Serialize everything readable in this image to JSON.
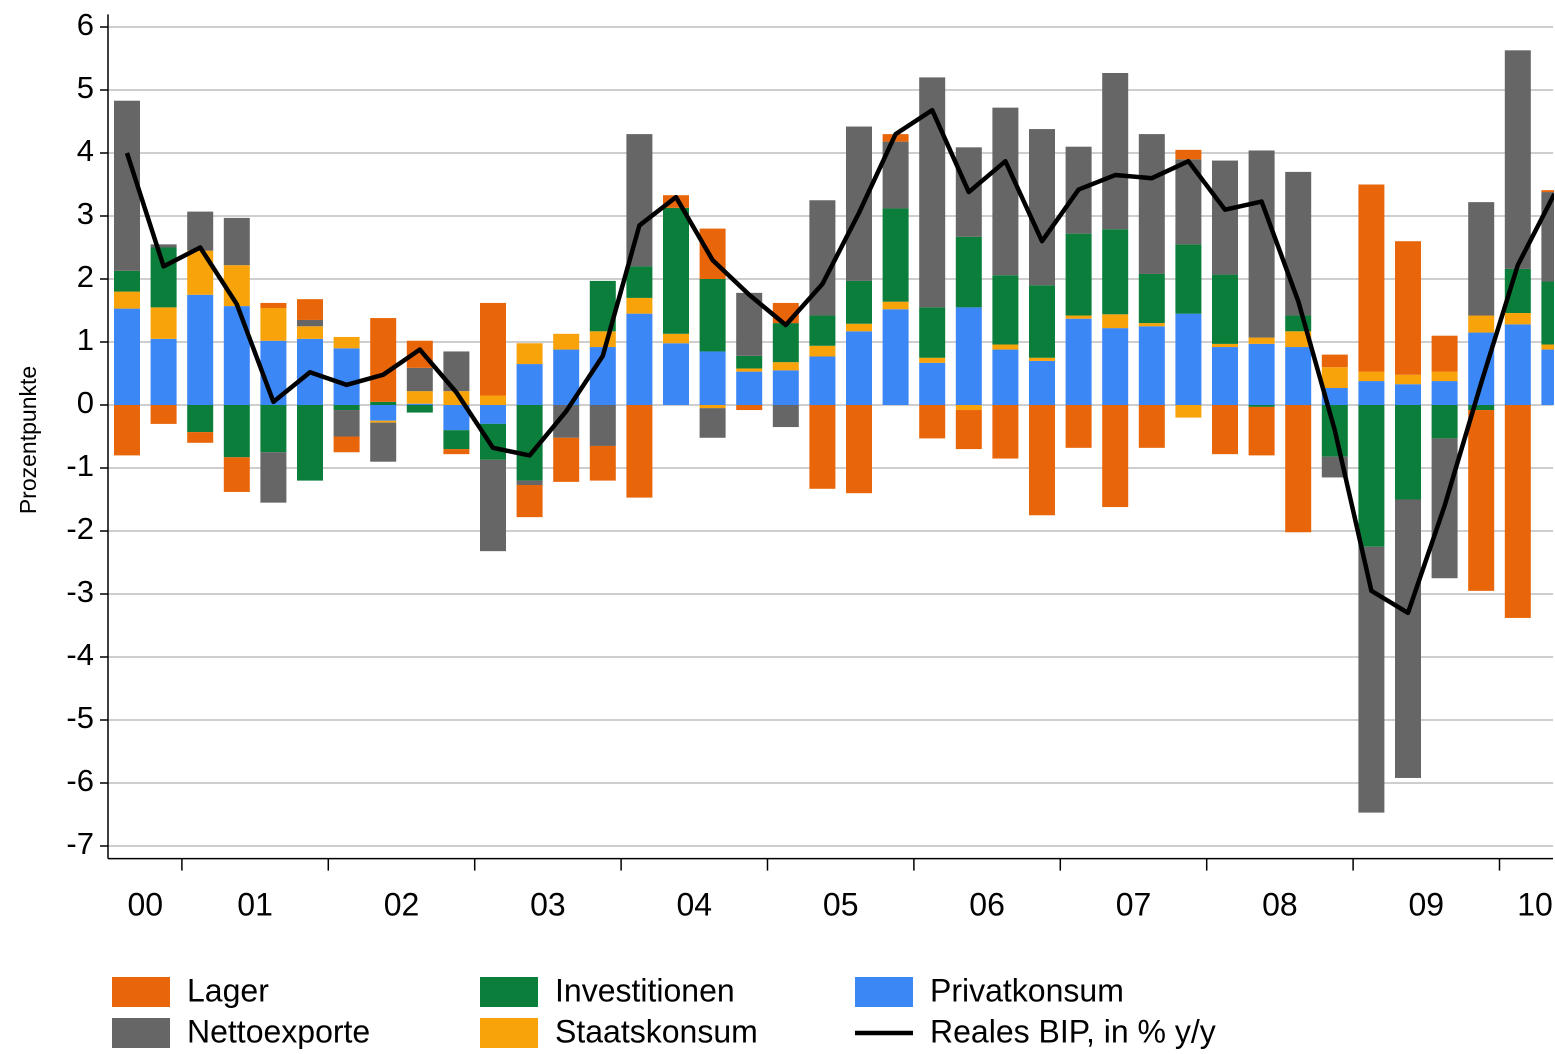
{
  "chart_data": {
    "type": "bar",
    "stacked": true,
    "y_label": "Prozentpunkte",
    "ylim": [
      -7.2,
      6.2
    ],
    "yticks": [
      -7,
      -6,
      -5,
      -4,
      -3,
      -2,
      -1,
      0,
      1,
      2,
      3,
      4,
      5,
      6
    ],
    "grid": true,
    "legend": "bottom",
    "categories": [
      "00",
      null,
      "01",
      null,
      null,
      null,
      "02",
      null,
      null,
      null,
      "03",
      null,
      null,
      null,
      "04",
      null,
      null,
      null,
      "05",
      null,
      null,
      null,
      "06",
      null,
      null,
      null,
      "07",
      null,
      null,
      null,
      "08",
      null,
      null,
      null,
      "09",
      null,
      null,
      null,
      "10",
      null
    ],
    "series": [
      {
        "name": "Lager",
        "color": "#e8650a",
        "values": [
          -0.8,
          -0.3,
          -0.17,
          -0.55,
          0.08,
          0.33,
          -0.25,
          1.33,
          0.43,
          -0.08,
          1.47,
          -0.51,
          -0.7,
          -0.55,
          -1.47,
          0.2,
          0.8,
          -0.08,
          0.32,
          -1.33,
          -1.4,
          0.12,
          -0.53,
          -0.62,
          -0.85,
          -1.75,
          -0.68,
          -1.62,
          -0.68,
          0.15,
          -0.78,
          -0.77,
          -2.02,
          0.2,
          2.97,
          2.12,
          0.57,
          -2.87,
          -3.38,
          0.03
        ]
      },
      {
        "name": "Nettoexporte",
        "color": "#666666",
        "values": [
          2.7,
          0.05,
          0.62,
          0.75,
          -0.8,
          0.1,
          -0.42,
          -0.62,
          0.37,
          0.63,
          -1.45,
          -0.07,
          -0.52,
          -0.65,
          2.1,
          0,
          -0.47,
          1.0,
          -0.35,
          1.83,
          2.45,
          1.06,
          3.65,
          1.42,
          2.66,
          2.48,
          1.38,
          2.48,
          2.22,
          1.35,
          1.81,
          2.97,
          2.28,
          -0.33,
          -4.22,
          -4.42,
          -2.22,
          1.8,
          3.47,
          1.42
        ]
      },
      {
        "name": "Investitionen",
        "color": "#0a7e3a",
        "values": [
          0.33,
          0.95,
          -0.43,
          -0.83,
          -0.75,
          -1.2,
          -0.08,
          0.05,
          -0.12,
          -0.3,
          -0.57,
          -1.2,
          0,
          0.8,
          0.5,
          2.0,
          1.15,
          0.2,
          0.62,
          0.48,
          0.68,
          1.48,
          0.8,
          1.12,
          1.1,
          1.15,
          1.3,
          1.35,
          0.78,
          1.1,
          1.1,
          -0.03,
          0.25,
          -0.82,
          -2.25,
          -1.5,
          -0.53,
          -0.08,
          0.7,
          1.0
        ]
      },
      {
        "name": "Staatskonsum",
        "color": "#f9a30b",
        "values": [
          0.27,
          0.5,
          0.7,
          0.65,
          0.52,
          0.2,
          0.18,
          -0.03,
          0.2,
          0.22,
          0.15,
          0.33,
          0.25,
          0.25,
          0.25,
          0.15,
          -0.05,
          0.05,
          0.13,
          0.17,
          0.12,
          0.12,
          0.08,
          -0.08,
          0.08,
          0.05,
          0.05,
          0.22,
          0.05,
          -0.2,
          0.05,
          0.1,
          0.25,
          0.33,
          0.15,
          0.15,
          0.15,
          0.27,
          0.18,
          0.08
        ]
      },
      {
        "name": "Privatkonsum",
        "color": "#3b87f5",
        "values": [
          1.53,
          1.05,
          1.75,
          1.57,
          1.02,
          1.05,
          0.9,
          -0.25,
          0.02,
          -0.4,
          -0.3,
          0.65,
          0.88,
          0.92,
          1.45,
          0.98,
          0.85,
          0.53,
          0.55,
          0.77,
          1.17,
          1.52,
          0.67,
          1.55,
          0.88,
          0.7,
          1.37,
          1.22,
          1.25,
          1.45,
          0.92,
          0.97,
          0.92,
          0.27,
          0.38,
          0.33,
          0.38,
          1.15,
          1.28,
          0.88
        ]
      },
      {
        "name": "Reales BIP, in % y/y",
        "color": "#000000",
        "type": "line",
        "values": [
          4.0,
          2.2,
          2.5,
          1.6,
          0.05,
          0.52,
          0.32,
          0.48,
          0.88,
          0.2,
          -0.68,
          -0.8,
          -0.1,
          0.78,
          2.85,
          3.3,
          2.3,
          1.75,
          1.27,
          1.92,
          3.05,
          4.3,
          4.68,
          3.38,
          3.87,
          2.6,
          3.42,
          3.65,
          3.6,
          3.87,
          3.1,
          3.23,
          1.65,
          -0.4,
          -2.95,
          -3.3,
          -1.6,
          0.35,
          2.22,
          3.35
        ]
      }
    ]
  }
}
